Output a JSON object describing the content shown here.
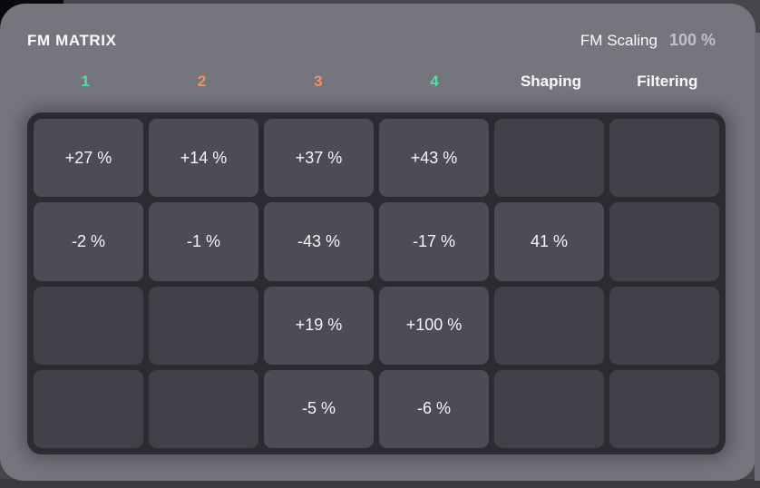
{
  "panel": {
    "title": "FM MATRIX",
    "scaling_label": "FM Scaling",
    "scaling_value": "100 %"
  },
  "columns": [
    {
      "label": "1",
      "color": "#52dfa6"
    },
    {
      "label": "2",
      "color": "#f09364"
    },
    {
      "label": "3",
      "color": "#f09364"
    },
    {
      "label": "4",
      "color": "#52dfa6"
    },
    {
      "label": "Shaping",
      "color": "#fafafb"
    },
    {
      "label": "Filtering",
      "color": "#fafafb"
    }
  ],
  "matrix": {
    "rows": [
      {
        "cells": [
          "+27 %",
          "+14 %",
          "+37 %",
          "+43 %",
          "",
          ""
        ]
      },
      {
        "cells": [
          "-2 %",
          "-1 %",
          "-43 %",
          "-17 %",
          "41 %",
          ""
        ]
      },
      {
        "cells": [
          "",
          "",
          "+19 %",
          "+100 %",
          "",
          ""
        ]
      },
      {
        "cells": [
          "",
          "",
          "-5 %",
          "-6 %",
          "",
          ""
        ]
      }
    ]
  },
  "colors": {
    "panel_background": "#75757e",
    "grid_background": "#2b2b31",
    "cell_filled": "#4c4c56",
    "cell_empty": "#41414a",
    "cell_text": "#f6f6f7",
    "scaling_value": "#c8bdcf",
    "accent_teal": "#52dfa6",
    "accent_orange": "#f09364",
    "bottom_strip": "#3a3a41"
  }
}
